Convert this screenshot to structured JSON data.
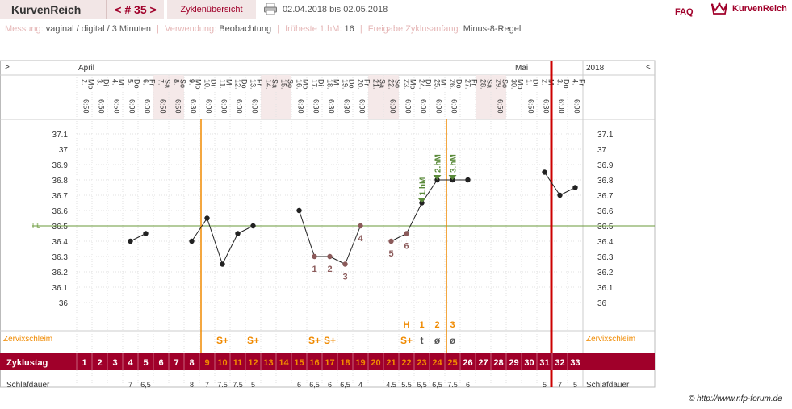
{
  "header": {
    "logo": "KurvenReich",
    "cycle_nav": "< # 35 >",
    "overview_button": "Zyklenübersicht",
    "date_range": "02.04.2018 bis 02.05.2018",
    "faq": "FAQ",
    "brand": "KurvenReich",
    "print_icon": "printer-icon",
    "crown_icon": "crown-icon"
  },
  "info": {
    "messung_label": "Messung:",
    "messung_value": "vaginal / digital / 3 Minuten",
    "verwendung_label": "Verwendung:",
    "verwendung_value": "Beobachtung",
    "frueheste_label": "früheste 1.hM:",
    "frueheste_value": "16",
    "freigabe_label": "Freigabe Zyklusanfang:",
    "freigabe_value": "Minus-8-Regel"
  },
  "colors": {
    "accent": "#a0002a",
    "orange": "#f08a00",
    "weekend": "#f5e9e9",
    "coverline": "#6a9a3a",
    "curve": "#222222",
    "sympto": "#8b5a5a",
    "marker_green": "#5a8a3a"
  },
  "chart_data": {
    "type": "line",
    "left_arrow": ">",
    "right_arrow": "<",
    "month_start": "April",
    "month_next": "Mai",
    "year": "2018",
    "days": [
      {
        "date": "2.",
        "wd": "Mo",
        "time": "6:50",
        "weekend": false
      },
      {
        "date": "3.",
        "wd": "Di",
        "time": "6:50",
        "weekend": false
      },
      {
        "date": "4.",
        "wd": "Mi",
        "time": "6:50",
        "weekend": false
      },
      {
        "date": "5.",
        "wd": "Do",
        "time": "6:00",
        "weekend": false
      },
      {
        "date": "6.",
        "wd": "Fr",
        "time": "6:00",
        "weekend": false
      },
      {
        "date": "7.",
        "wd": "Sa",
        "time": "6:50",
        "weekend": true
      },
      {
        "date": "8.",
        "wd": "So",
        "time": "6:50",
        "weekend": true
      },
      {
        "date": "9.",
        "wd": "Mo",
        "time": "6:30",
        "weekend": false
      },
      {
        "date": "10.",
        "wd": "Di",
        "time": "6:00",
        "weekend": false
      },
      {
        "date": "11.",
        "wd": "Mi",
        "time": "6:00",
        "weekend": false
      },
      {
        "date": "12.",
        "wd": "Do",
        "time": "6:00",
        "weekend": false
      },
      {
        "date": "13.",
        "wd": "Fr",
        "time": "6:00",
        "weekend": false
      },
      {
        "date": "14.",
        "wd": "Sa",
        "time": "",
        "weekend": true
      },
      {
        "date": "15.",
        "wd": "So",
        "time": "",
        "weekend": true
      },
      {
        "date": "16.",
        "wd": "Mo",
        "time": "6:30",
        "weekend": false
      },
      {
        "date": "17.",
        "wd": "Di",
        "time": "6:30",
        "weekend": false
      },
      {
        "date": "18.",
        "wd": "Mi",
        "time": "6:30",
        "weekend": false
      },
      {
        "date": "19.",
        "wd": "Do",
        "time": "6:30",
        "weekend": false
      },
      {
        "date": "20.",
        "wd": "Fr",
        "time": "6:00",
        "weekend": false
      },
      {
        "date": "21.",
        "wd": "Sa",
        "time": "",
        "weekend": true
      },
      {
        "date": "22.",
        "wd": "So",
        "time": "6:00",
        "weekend": true
      },
      {
        "date": "23.",
        "wd": "Mo",
        "time": "6:00",
        "weekend": false
      },
      {
        "date": "24.",
        "wd": "Di",
        "time": "6:00",
        "weekend": false
      },
      {
        "date": "25.",
        "wd": "Mi",
        "time": "6:00",
        "weekend": false
      },
      {
        "date": "26.",
        "wd": "Do",
        "time": "6:00",
        "weekend": false
      },
      {
        "date": "27.",
        "wd": "Fr",
        "time": "",
        "weekend": false
      },
      {
        "date": "28.",
        "wd": "Sa",
        "time": "",
        "weekend": true
      },
      {
        "date": "29.",
        "wd": "So",
        "time": "6:50",
        "weekend": true
      },
      {
        "date": "30.",
        "wd": "Mo",
        "time": "",
        "weekend": false
      },
      {
        "date": "1.",
        "wd": "Di",
        "time": "6:50",
        "weekend": false
      },
      {
        "date": "2.",
        "wd": "Mi",
        "time": "6:30",
        "weekend": false
      },
      {
        "date": "3.",
        "wd": "Do",
        "time": "6:00",
        "weekend": false
      },
      {
        "date": "4.",
        "wd": "Fr",
        "time": "6:00",
        "weekend": false
      }
    ],
    "cycle_days": [
      1,
      2,
      3,
      4,
      5,
      6,
      7,
      8,
      9,
      10,
      11,
      12,
      13,
      14,
      15,
      16,
      17,
      18,
      19,
      20,
      21,
      22,
      23,
      24,
      25,
      26,
      27,
      28,
      29,
      30,
      31,
      32,
      33
    ],
    "fertile_cycle_days": [
      9,
      10,
      11,
      12,
      13,
      14,
      15,
      16,
      17,
      18,
      19,
      20,
      21,
      22,
      23,
      24,
      25
    ],
    "temperatures": [
      null,
      null,
      null,
      36.4,
      36.45,
      null,
      null,
      36.4,
      36.55,
      36.25,
      36.45,
      36.5,
      null,
      null,
      36.6,
      36.3,
      36.3,
      36.25,
      36.5,
      null,
      36.4,
      36.45,
      36.65,
      36.8,
      36.8,
      36.8,
      null,
      null,
      null,
      null,
      36.85,
      36.7,
      36.75
    ],
    "ylim": [
      36.0,
      37.1
    ],
    "yticks": [
      "37.1",
      "37",
      "36.9",
      "36.8",
      "36.7",
      "36.6",
      "36.5",
      "36.4",
      "36.3",
      "36.2",
      "36.1",
      "36"
    ],
    "coverline": 36.5,
    "coverline_label": "HL",
    "low_labels": [
      {
        "cycle_day": 21,
        "text": "5"
      },
      {
        "cycle_day": 22,
        "text": "6"
      },
      {
        "cycle_day": 16,
        "text": "1"
      },
      {
        "cycle_day": 17,
        "text": "2"
      },
      {
        "cycle_day": 18,
        "text": "3"
      },
      {
        "cycle_day": 19,
        "text": "4"
      }
    ],
    "high_markers": [
      {
        "cycle_day": 23,
        "text": "1.hM"
      },
      {
        "cycle_day": 24,
        "text": "2.hM"
      },
      {
        "cycle_day": 25,
        "text": "3.hM"
      }
    ],
    "orange_lines_cycle_days": [
      9,
      25
    ],
    "red_line_cycle_day": 31,
    "cervix_label": "Zervixschleim",
    "cervix_top": [
      {
        "cycle_day": 22,
        "text": "H"
      },
      {
        "cycle_day": 23,
        "text": "1"
      },
      {
        "cycle_day": 24,
        "text": "2"
      },
      {
        "cycle_day": 25,
        "text": "3"
      }
    ],
    "cervix": [
      {
        "cycle_day": 10,
        "text": "S+"
      },
      {
        "cycle_day": 12,
        "text": "S+"
      },
      {
        "cycle_day": 16,
        "text": "S+"
      },
      {
        "cycle_day": 17,
        "text": "S+"
      },
      {
        "cycle_day": 22,
        "text": "S+"
      },
      {
        "cycle_day": 23,
        "text": "t"
      },
      {
        "cycle_day": 24,
        "text": "ø"
      },
      {
        "cycle_day": 25,
        "text": "ø"
      }
    ],
    "zyklustag_label": "Zyklustag",
    "sleep_label": "Schlafdauer",
    "sleep": [
      "",
      "",
      "",
      "7",
      "6,5",
      "",
      "",
      "8",
      "7",
      "7.5",
      "7.5",
      "5",
      "",
      "",
      "6",
      "6,5",
      "6",
      "6,5",
      "4",
      "",
      "4.5",
      "5.5",
      "6,5",
      "6,5",
      "7.5",
      "6",
      "",
      "",
      "",
      "",
      "5",
      "7",
      "5"
    ]
  },
  "footer": {
    "copyright": "© http://www.nfp-forum.de"
  }
}
